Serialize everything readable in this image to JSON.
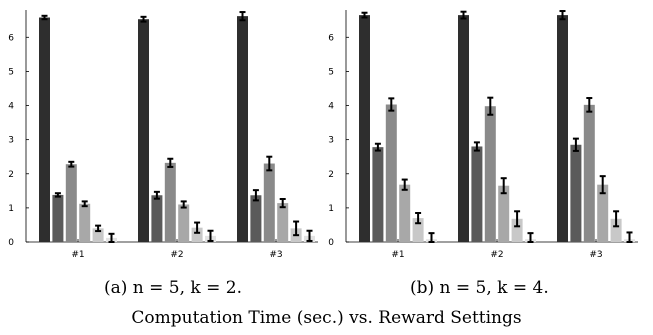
{
  "title": "Computation Time (sec.) vs. Reward Settings",
  "chart_data": [
    {
      "type": "bar",
      "caption": "(a) n = 5, k = 2.",
      "categories": [
        "#1",
        "#2",
        "#3"
      ],
      "ylim": [
        0,
        6.8
      ],
      "yticks": [
        0,
        1,
        2,
        3,
        4,
        5,
        6
      ],
      "grid": false,
      "bar_colors": [
        "#2e2e2e",
        "#5a5a5a",
        "#8a8a8a",
        "#a8a8a8",
        "#c8c8c8",
        "#e3e3e3"
      ],
      "groups": [
        {
          "values": [
            6.58,
            1.38,
            2.28,
            1.12,
            0.4,
            0.12
          ],
          "errors": [
            0.05,
            0.05,
            0.07,
            0.07,
            0.08,
            0.12
          ]
        },
        {
          "values": [
            6.53,
            1.37,
            2.32,
            1.1,
            0.42,
            0.18
          ],
          "errors": [
            0.07,
            0.1,
            0.12,
            0.09,
            0.15,
            0.15
          ]
        },
        {
          "values": [
            6.62,
            1.37,
            2.3,
            1.14,
            0.4,
            0.18
          ],
          "errors": [
            0.12,
            0.15,
            0.2,
            0.12,
            0.2,
            0.15
          ]
        }
      ]
    },
    {
      "type": "bar",
      "caption": "(b) n = 5, k = 4.",
      "categories": [
        "#1",
        "#2",
        "#3"
      ],
      "ylim": [
        0,
        6.8
      ],
      "yticks": [
        0,
        1,
        2,
        3,
        4,
        5,
        6
      ],
      "grid": false,
      "bar_colors": [
        "#2e2e2e",
        "#5a5a5a",
        "#8a8a8a",
        "#a8a8a8",
        "#c8c8c8",
        "#e3e3e3"
      ],
      "groups": [
        {
          "values": [
            6.65,
            2.78,
            4.03,
            1.68,
            0.7,
            0.08
          ],
          "errors": [
            0.07,
            0.1,
            0.18,
            0.15,
            0.15,
            0.18
          ]
        },
        {
          "values": [
            6.65,
            2.8,
            3.98,
            1.65,
            0.68,
            0.08
          ],
          "errors": [
            0.1,
            0.12,
            0.25,
            0.22,
            0.22,
            0.18
          ]
        },
        {
          "values": [
            6.65,
            2.85,
            4.02,
            1.68,
            0.68,
            0.08
          ],
          "errors": [
            0.12,
            0.18,
            0.2,
            0.25,
            0.22,
            0.2
          ]
        }
      ]
    }
  ]
}
